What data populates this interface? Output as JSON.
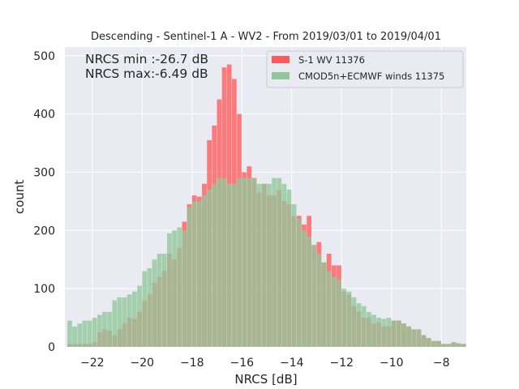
{
  "chart_data": {
    "type": "bar",
    "title": "Descending - Sentinel-1 A - WV2 - From 2019/03/01 to 2019/04/01",
    "xlabel": "NRCS [dB]",
    "ylabel": "count",
    "xlim": [
      -23.1,
      -7.0
    ],
    "ylim": [
      0,
      515
    ],
    "xticks": [
      -22,
      -20,
      -18,
      -16,
      -14,
      -12,
      -10,
      -8
    ],
    "yticks": [
      0,
      100,
      200,
      300,
      400,
      500
    ],
    "grid": true,
    "legend_position": "top-right",
    "annotations": [
      "NRCS min :-26.7 dB",
      "NRCS max:-6.49 dB"
    ],
    "bin_width": 0.2,
    "x": [
      -22.9,
      -22.7,
      -22.5,
      -22.3,
      -22.1,
      -21.9,
      -21.7,
      -21.5,
      -21.3,
      -21.1,
      -20.9,
      -20.7,
      -20.5,
      -20.3,
      -20.1,
      -19.9,
      -19.7,
      -19.5,
      -19.3,
      -19.1,
      -18.9,
      -18.7,
      -18.5,
      -18.3,
      -18.1,
      -17.9,
      -17.7,
      -17.5,
      -17.3,
      -17.1,
      -16.9,
      -16.7,
      -16.5,
      -16.3,
      -16.1,
      -15.9,
      -15.7,
      -15.5,
      -15.3,
      -15.1,
      -14.9,
      -14.7,
      -14.5,
      -14.3,
      -14.1,
      -13.9,
      -13.7,
      -13.5,
      -13.3,
      -13.1,
      -12.9,
      -12.7,
      -12.5,
      -12.3,
      -12.1,
      -11.9,
      -11.7,
      -11.5,
      -11.3,
      -11.1,
      -10.9,
      -10.7,
      -10.5,
      -10.3,
      -10.1,
      -9.9,
      -9.7,
      -9.5,
      -9.3,
      -9.1,
      -8.9,
      -8.7,
      -8.5,
      -8.3,
      -8.1,
      -7.9,
      -7.7,
      -7.5,
      -7.3,
      -7.1
    ],
    "series": [
      {
        "name": "S-1 WV 11376",
        "color": "#ff5a5a",
        "values": [
          5,
          5,
          5,
          5,
          5,
          8,
          25,
          30,
          28,
          20,
          30,
          40,
          50,
          48,
          60,
          80,
          90,
          110,
          120,
          130,
          160,
          150,
          170,
          215,
          245,
          260,
          258,
          280,
          355,
          380,
          425,
          480,
          485,
          460,
          400,
          300,
          310,
          290,
          265,
          280,
          260,
          260,
          270,
          250,
          245,
          225,
          225,
          210,
          225,
          175,
          180,
          145,
          160,
          140,
          140,
          95,
          90,
          70,
          60,
          50,
          50,
          40,
          42,
          35,
          35,
          45,
          45,
          40,
          35,
          30,
          30,
          20,
          15,
          10,
          10,
          5,
          5,
          8,
          6,
          5
        ]
      },
      {
        "name": "CMOD5n+ECMWF winds 11375",
        "color": "#8fc79a",
        "values": [
          45,
          35,
          40,
          45,
          45,
          50,
          55,
          60,
          60,
          80,
          85,
          85,
          90,
          95,
          105,
          130,
          135,
          150,
          160,
          160,
          195,
          200,
          205,
          200,
          240,
          250,
          250,
          260,
          270,
          280,
          290,
          290,
          280,
          280,
          290,
          290,
          290,
          290,
          280,
          280,
          280,
          290,
          290,
          280,
          270,
          245,
          220,
          200,
          190,
          175,
          160,
          145,
          130,
          120,
          115,
          100,
          95,
          85,
          75,
          70,
          60,
          55,
          50,
          48,
          50,
          45,
          45,
          40,
          35,
          30,
          30,
          20,
          15,
          10,
          10,
          5,
          5,
          8,
          6,
          5
        ]
      }
    ]
  }
}
